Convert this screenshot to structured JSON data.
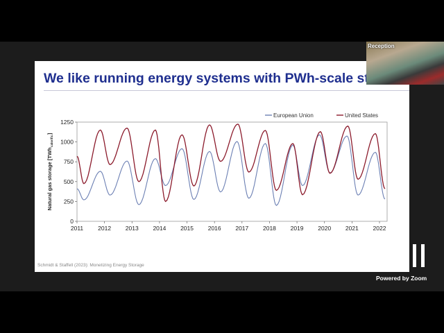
{
  "slide": {
    "title": "We like running energy systems with PWh-scale stora",
    "footer": "Schmidt & Staffell (2023): Monetizing Energy Storage"
  },
  "video": {
    "participant_name": "Reception"
  },
  "branding": {
    "powered_by": "Powered by Zoom"
  },
  "chart_data": {
    "type": "line",
    "ylabel": "Natural gas storage [TWh",
    "ylabel_subscript": "calorific",
    "ylabel_close": "]",
    "ylim": [
      0,
      1250
    ],
    "yticks": [
      0,
      250,
      500,
      750,
      1000,
      1250
    ],
    "xlim": [
      2011,
      2022.2
    ],
    "xticks": [
      2011,
      2012,
      2013,
      2014,
      2015,
      2016,
      2017,
      2018,
      2019,
      2020,
      2021,
      2022
    ],
    "grid": false,
    "legend_placement": "top-right",
    "series": [
      {
        "name": "European Union",
        "color": "#6b7fb3",
        "x": [
          2011,
          2011.25,
          2011.85,
          2012.2,
          2012.82,
          2013.25,
          2013.85,
          2014.22,
          2014.82,
          2015.25,
          2015.82,
          2016.22,
          2016.82,
          2017.25,
          2017.85,
          2018.25,
          2018.85,
          2019.2,
          2019.82,
          2020.2,
          2020.82,
          2021.22,
          2021.85,
          2022.2
        ],
        "y": [
          410,
          270,
          630,
          330,
          760,
          210,
          790,
          450,
          915,
          275,
          880,
          370,
          1005,
          290,
          980,
          200,
          960,
          450,
          1090,
          610,
          1075,
          330,
          870,
          280
        ]
      },
      {
        "name": "United States",
        "color": "#8b1a2b",
        "x": [
          2011,
          2011.25,
          2011.85,
          2012.2,
          2012.82,
          2013.25,
          2013.85,
          2014.22,
          2014.82,
          2015.25,
          2015.82,
          2016.22,
          2016.85,
          2017.25,
          2017.85,
          2018.25,
          2018.85,
          2019.2,
          2019.85,
          2020.2,
          2020.85,
          2021.22,
          2021.85,
          2022.2
        ],
        "y": [
          820,
          475,
          1150,
          715,
          1175,
          500,
          1150,
          250,
          1090,
          445,
          1215,
          755,
          1225,
          620,
          1145,
          390,
          980,
          335,
          1130,
          605,
          1200,
          530,
          1105,
          410
        ]
      }
    ]
  }
}
